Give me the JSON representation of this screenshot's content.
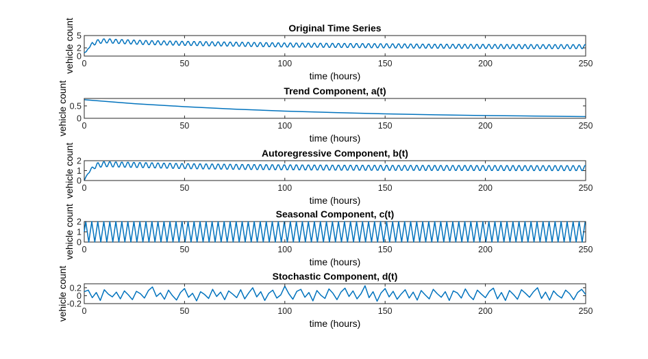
{
  "colors": {
    "series": "#0072BD",
    "axes": "#262626",
    "background": "#ffffff"
  },
  "chart_data": [
    {
      "type": "line",
      "title": "Original Time Series",
      "xlabel": "time (hours)",
      "ylabel": "vehicle count",
      "xlim": [
        0,
        250
      ],
      "ylim": [
        0,
        5
      ],
      "xticks": [
        0,
        50,
        100,
        150,
        200,
        250
      ],
      "yticks": [
        0,
        2,
        5
      ],
      "xtick_labels": [
        "0",
        "50",
        "100",
        "150",
        "200",
        "250"
      ],
      "ytick_labels": [
        "0",
        "2",
        "5"
      ],
      "grid": false,
      "series": [
        {
          "x": [
            0,
            1,
            2,
            3,
            4,
            5,
            6,
            8,
            10,
            12,
            15,
            20,
            30,
            50,
            75,
            100,
            125,
            150,
            175,
            200,
            225,
            250
          ],
          "y": [
            0.8,
            1.0,
            2.0,
            2.4,
            3.0,
            3.1,
            3.4,
            3.6,
            3.7,
            3.7,
            3.6,
            3.5,
            3.3,
            3.1,
            2.9,
            2.7,
            2.6,
            2.5,
            2.4,
            2.35,
            2.3,
            2.3
          ]
        }
      ]
    },
    {
      "type": "line",
      "title": "Trend Component, a(t)",
      "xlabel": "time (hours)",
      "ylabel": "vehicle count",
      "xlim": [
        0,
        250
      ],
      "ylim": [
        0,
        0.8
      ],
      "xticks": [
        0,
        50,
        100,
        150,
        200,
        250
      ],
      "yticks": [
        0,
        0.5
      ],
      "xtick_labels": [
        "0",
        "50",
        "100",
        "150",
        "200",
        "250"
      ],
      "ytick_labels": [
        "0",
        "0.5"
      ],
      "grid": false,
      "series": [
        {
          "x": [
            0,
            25,
            50,
            75,
            100,
            125,
            150,
            175,
            200,
            225,
            250
          ],
          "y": [
            0.75,
            0.59,
            0.47,
            0.37,
            0.29,
            0.23,
            0.18,
            0.14,
            0.11,
            0.09,
            0.07
          ]
        }
      ]
    },
    {
      "type": "line",
      "title": "Autoregressive Component, b(t)",
      "xlabel": "time (hours)",
      "ylabel": "vehicle count",
      "xlim": [
        0,
        250
      ],
      "ylim": [
        0,
        2
      ],
      "xticks": [
        0,
        50,
        100,
        150,
        200,
        250
      ],
      "yticks": [
        0,
        1,
        2
      ],
      "xtick_labels": [
        "0",
        "50",
        "100",
        "150",
        "200",
        "250"
      ],
      "ytick_labels": [
        "0",
        "1",
        "2"
      ],
      "grid": false,
      "series": [
        {
          "x": [
            0,
            1,
            2,
            3,
            4,
            5,
            6,
            8,
            10,
            12,
            15,
            20,
            30,
            50,
            75,
            100,
            125,
            150,
            175,
            200,
            225,
            250
          ],
          "y": [
            0.0,
            0.4,
            0.8,
            1.0,
            1.2,
            1.4,
            1.5,
            1.6,
            1.65,
            1.65,
            1.62,
            1.6,
            1.55,
            1.45,
            1.38,
            1.33,
            1.3,
            1.28,
            1.27,
            1.26,
            1.25,
            1.25
          ]
        }
      ]
    },
    {
      "type": "line",
      "title": "Seasonal Component, c(t)",
      "xlabel": "time (hours)",
      "ylabel": "vehicle count",
      "xlim": [
        0,
        250
      ],
      "ylim": [
        0,
        2
      ],
      "xticks": [
        0,
        50,
        100,
        150,
        200,
        250
      ],
      "yticks": [
        0,
        1,
        2
      ],
      "xtick_labels": [
        "0",
        "50",
        "100",
        "150",
        "200",
        "250"
      ],
      "ytick_labels": [
        "0",
        "1",
        "2"
      ],
      "grid": false,
      "series": [
        {
          "x": [
            0,
            1.5,
            3,
            4.5,
            6,
            7.5,
            9,
            10.5,
            12
          ],
          "y": [
            1.0,
            2.0,
            1.0,
            0.0,
            1.0,
            2.0,
            1.0,
            0.0,
            1.0
          ]
        }
      ]
    },
    {
      "type": "line",
      "title": "Stochastic Component, d(t)",
      "xlabel": "time (hours)",
      "ylabel": "vehicle count",
      "xlim": [
        0,
        250
      ],
      "ylim": [
        -0.2,
        0.3
      ],
      "xticks": [
        0,
        50,
        100,
        150,
        200,
        250
      ],
      "yticks": [
        -0.2,
        0,
        0.2
      ],
      "xtick_labels": [
        "0",
        "50",
        "100",
        "150",
        "200",
        "250"
      ],
      "ytick_labels": [
        "-0.2",
        "0",
        "0.2"
      ],
      "grid": false,
      "series": [
        {
          "x": [
            0,
            2,
            4,
            6,
            8,
            10,
            12,
            14,
            16,
            18,
            20,
            22,
            24,
            26,
            28,
            30,
            32,
            34,
            36,
            38,
            40,
            42,
            44,
            46,
            48,
            50,
            52,
            54,
            56,
            58,
            60,
            62,
            64,
            66,
            68,
            70,
            72,
            74,
            76,
            78,
            80,
            82,
            84,
            86,
            88,
            90,
            92,
            94,
            96,
            98,
            100,
            102,
            104,
            106,
            108,
            110,
            112,
            114,
            116,
            118,
            120,
            122,
            124,
            126,
            128,
            130,
            132,
            134,
            136,
            138,
            140,
            142,
            144,
            146,
            148,
            150,
            152,
            154,
            156,
            158,
            160,
            162,
            164,
            166,
            168,
            170,
            172,
            174,
            176,
            178,
            180,
            182,
            184,
            186,
            188,
            190,
            192,
            194,
            196,
            198,
            200,
            202,
            204,
            206,
            208,
            210,
            212,
            214,
            216,
            218,
            220,
            222,
            224,
            226,
            228,
            230,
            232,
            234,
            236,
            238,
            240,
            242,
            244,
            246,
            248,
            250
          ],
          "y": [
            0.1,
            0.14,
            -0.05,
            0.08,
            -0.12,
            0.15,
            0.04,
            -0.03,
            0.09,
            -0.08,
            0.12,
            0.02,
            -0.1,
            0.11,
            0.05,
            -0.06,
            0.13,
            0.22,
            -0.02,
            0.07,
            -0.09,
            0.14,
            0.0,
            -0.11,
            0.08,
            0.18,
            -0.04,
            0.06,
            -0.13,
            0.1,
            0.03,
            -0.07,
            0.16,
            -0.02,
            0.09,
            -0.1,
            0.12,
            0.04,
            -0.05,
            0.15,
            -0.08,
            0.07,
            0.2,
            -0.03,
            0.1,
            -0.12,
            0.06,
            0.14,
            -0.06,
            0.02,
            0.24,
            0.05,
            -0.09,
            0.11,
            0.16,
            -0.04,
            0.08,
            -0.13,
            0.13,
            0.01,
            -0.07,
            0.17,
            0.06,
            -0.1,
            0.09,
            0.19,
            -0.02,
            0.12,
            -0.08,
            0.05,
            0.25,
            -0.05,
            0.1,
            -0.14,
            0.07,
            0.18,
            -0.03,
            0.11,
            -0.09,
            0.04,
            0.15,
            -0.06,
            0.09,
            -0.11,
            0.13,
            0.02,
            -0.08,
            0.16,
            0.05,
            -0.04,
            0.1,
            -0.12,
            0.12,
            0.07,
            -0.06,
            0.17,
            0.0,
            -0.1,
            0.14,
            0.04,
            -0.05,
            0.11,
            0.19,
            -0.08,
            0.08,
            -0.12,
            0.13,
            0.03,
            -0.09,
            0.15,
            0.06,
            -0.04,
            0.1,
            0.2,
            -0.07,
            0.09,
            -0.11,
            0.12,
            0.01,
            -0.06,
            0.14,
            0.05,
            -0.1,
            0.08,
            0.16,
            0.03
          ]
        }
      ]
    }
  ]
}
